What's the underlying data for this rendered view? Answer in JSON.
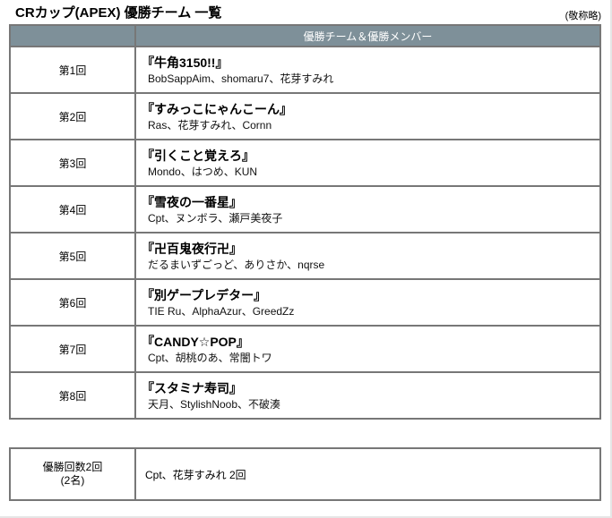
{
  "page": {
    "title": "CRカップ(APEX) 優勝チーム 一覧",
    "note": "(敬称略)"
  },
  "colors": {
    "header_bg": "#7e9099",
    "header_text": "#ffffff",
    "border": "#777777",
    "text": "#000000"
  },
  "table": {
    "header_label": "優勝チーム＆優勝メンバー",
    "rows": [
      {
        "round": "第1回",
        "team": "『牛角3150!!』",
        "members": "BobSappAim、shomaru7、花芽すみれ"
      },
      {
        "round": "第2回",
        "team": "『すみっこにゃんこーん』",
        "members": "Ras、花芽すみれ、Cornn"
      },
      {
        "round": "第3回",
        "team": "『引くこと覚えろ』",
        "members": "Mondo、はつめ、KUN"
      },
      {
        "round": "第4回",
        "team": "『雪夜の一番星』",
        "members": "Cpt、ヌンボラ、瀬戸美夜子"
      },
      {
        "round": "第5回",
        "team": "『卍百鬼夜行卍』",
        "members": "だるまいずごっど、ありさか、nqrse"
      },
      {
        "round": "第6回",
        "team": "『別ゲープレデター』",
        "members": "TIE Ru、AlphaAzur、GreedZz"
      },
      {
        "round": "第7回",
        "team": "『CANDY☆POP』",
        "members": "Cpt、胡桃のあ、常闇トワ"
      },
      {
        "round": "第8回",
        "team": "『スタミナ寿司』",
        "members": "天月、StylishNoob、不破湊"
      }
    ]
  },
  "summary": {
    "count_label": "優勝回数2回",
    "count_sub": "(2名)",
    "members": "Cpt、花芽すみれ 2回"
  }
}
